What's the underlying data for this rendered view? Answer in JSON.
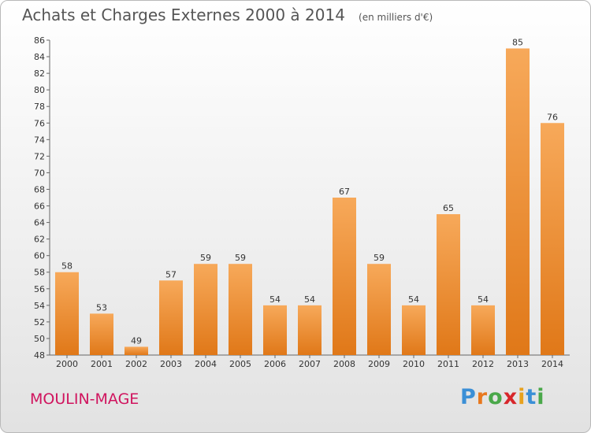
{
  "chart_data": {
    "type": "bar",
    "title": "Achats et Charges Externes 2000 à 2014",
    "subtitle": "(en milliers d'€)",
    "categories": [
      "2000",
      "2001",
      "2002",
      "2003",
      "2004",
      "2005",
      "2006",
      "2007",
      "2008",
      "2009",
      "2010",
      "2011",
      "2012",
      "2013",
      "2014"
    ],
    "values": [
      58,
      53,
      49,
      57,
      59,
      59,
      54,
      54,
      67,
      59,
      54,
      65,
      54,
      85,
      76
    ],
    "ylim": [
      48,
      86
    ],
    "yticks": [
      48,
      50,
      52,
      54,
      56,
      58,
      60,
      62,
      64,
      66,
      68,
      70,
      72,
      74,
      76,
      78,
      80,
      82,
      84,
      86
    ],
    "grid": false,
    "bar_color_top": "#f7a95a",
    "bar_color_bottom": "#e07818"
  },
  "commune": "MOULIN-MAGE",
  "logo": {
    "letters": [
      "P",
      "r",
      "o",
      "x",
      "i",
      "t",
      "i"
    ],
    "colors": [
      "#3b8fd6",
      "#e8781e",
      "#4aa84a",
      "#d7262b",
      "#e8a21e",
      "#3b8fd6",
      "#4aa84a"
    ]
  }
}
